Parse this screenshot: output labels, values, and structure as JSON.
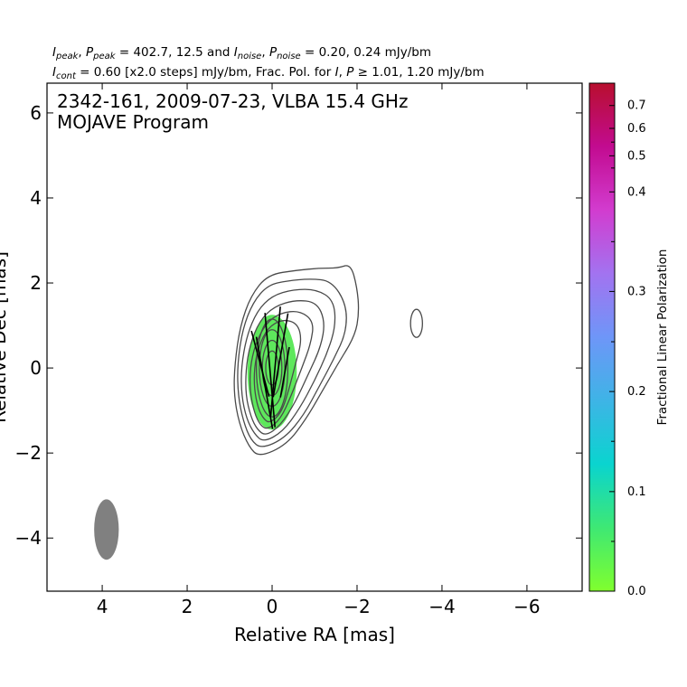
{
  "header": {
    "line1": {
      "i_peak_sym": "I",
      "i_peak_sub": "peak",
      "p_peak_sym": "P",
      "p_peak_sub": "peak",
      "mid": " = 402.7, 12.5 and ",
      "i_noise_sym": "I",
      "i_noise_sub": "noise",
      "p_noise_sym": "P",
      "p_noise_sub": "noise",
      "tail": " = 0.20, 0.24 mJy/bm"
    },
    "line2": {
      "i_cont_sym": "I",
      "i_cont_sub": "cont",
      "mid": " = 0.60 [x2.0 steps] mJy/bm, Frac. Pol. for ",
      "i_sym": "I",
      "p_sym": "P",
      "tail": " ≥ 1.01, 1.20 mJy/bm"
    }
  },
  "plot": {
    "title_line1": "2342-161, 2009-07-23, VLBA 15.4 GHz",
    "title_line2": "MOJAVE Program",
    "xlabel": "Relative RA [mas]",
    "ylabel": "Relative Dec [mas]"
  },
  "colorbar": {
    "label": "Fractional Linear Polarization",
    "ticks": [
      "0.0",
      "0.1",
      "0.2",
      "0.3",
      "0.4",
      "0.5",
      "0.6",
      "0.7"
    ],
    "colors": [
      "#80ff2e",
      "#3ee874",
      "#0ad4cf",
      "#3eb4e6",
      "#6e96f8",
      "#a273f0",
      "#d23ccf",
      "#c20b90",
      "#b80f2e"
    ]
  },
  "chart_data": {
    "type": "contour",
    "title": "2342-161, 2009-07-23, VLBA 15.4 GHz",
    "subtitle": "MOJAVE Program",
    "xlabel": "Relative RA [mas]",
    "ylabel": "Relative Dec [mas]",
    "xlim": [
      5.3,
      -7.3
    ],
    "ylim": [
      -5.25,
      6.7
    ],
    "x_ticks": [
      4,
      2,
      0,
      -2,
      -4,
      -6
    ],
    "y_ticks": [
      -4,
      -2,
      0,
      2,
      4,
      6
    ],
    "x_tick_labels": [
      "4",
      "2",
      "0",
      "−2",
      "−4",
      "−6"
    ],
    "y_tick_labels": [
      "−4",
      "−2",
      "0",
      "2",
      "4",
      "6"
    ],
    "i_peak_mjy_bm": 402.7,
    "p_peak_mjy_bm": 12.5,
    "i_noise_mjy_bm": 0.2,
    "p_noise_mjy_bm": 0.24,
    "i_cont_mjy_bm": 0.6,
    "contour_step_factor": 2.0,
    "fracpol_cut_i_mjy_bm": 1.01,
    "fracpol_cut_p_mjy_bm": 1.2,
    "beam": {
      "center": [
        3.9,
        -3.8
      ],
      "major_mas": 1.42,
      "minor_mas": 0.58,
      "pa_deg": 0
    },
    "contours": [
      {
        "level": 1,
        "points": [
          [
            0.3,
            -2.1
          ],
          [
            -0.35,
            -1.8
          ],
          [
            -0.8,
            -1.2
          ],
          [
            -1.15,
            -0.6
          ],
          [
            -1.55,
            0.1
          ],
          [
            -1.95,
            0.75
          ],
          [
            -2.05,
            1.3
          ],
          [
            -2.0,
            1.9
          ],
          [
            -1.85,
            2.45
          ],
          [
            -1.55,
            2.35
          ],
          [
            -1.1,
            2.35
          ],
          [
            -0.6,
            2.3
          ],
          [
            0.1,
            2.2
          ],
          [
            0.5,
            1.7
          ],
          [
            0.75,
            1.0
          ],
          [
            0.88,
            0.1
          ],
          [
            0.9,
            -0.6
          ],
          [
            0.78,
            -1.3
          ],
          [
            0.55,
            -1.85
          ]
        ]
      },
      {
        "level": 2,
        "points": [
          [
            0.25,
            -1.9
          ],
          [
            -0.3,
            -1.65
          ],
          [
            -0.75,
            -1.1
          ],
          [
            -1.1,
            -0.45
          ],
          [
            -1.45,
            0.2
          ],
          [
            -1.75,
            0.85
          ],
          [
            -1.75,
            1.5
          ],
          [
            -1.4,
            2.05
          ],
          [
            -0.9,
            2.1
          ],
          [
            -0.35,
            2.05
          ],
          [
            0.1,
            1.95
          ],
          [
            0.45,
            1.55
          ],
          [
            0.7,
            0.9
          ],
          [
            0.82,
            0.05
          ],
          [
            0.8,
            -0.65
          ],
          [
            0.68,
            -1.25
          ],
          [
            0.5,
            -1.7
          ]
        ]
      },
      {
        "level": 3,
        "points": [
          [
            0.2,
            -1.75
          ],
          [
            -0.25,
            -1.5
          ],
          [
            -0.65,
            -0.95
          ],
          [
            -1.0,
            -0.3
          ],
          [
            -1.3,
            0.35
          ],
          [
            -1.5,
            1.0
          ],
          [
            -1.45,
            1.6
          ],
          [
            -1.05,
            1.85
          ],
          [
            -0.5,
            1.85
          ],
          [
            0.0,
            1.7
          ],
          [
            0.35,
            1.35
          ],
          [
            0.6,
            0.75
          ],
          [
            0.73,
            0.0
          ],
          [
            0.72,
            -0.65
          ],
          [
            0.6,
            -1.2
          ],
          [
            0.42,
            -1.55
          ]
        ]
      },
      {
        "level": 4,
        "points": [
          [
            0.15,
            -1.6
          ],
          [
            -0.2,
            -1.35
          ],
          [
            -0.55,
            -0.8
          ],
          [
            -0.85,
            -0.15
          ],
          [
            -1.15,
            0.5
          ],
          [
            -1.25,
            1.1
          ],
          [
            -1.05,
            1.55
          ],
          [
            -0.55,
            1.6
          ],
          [
            -0.05,
            1.45
          ],
          [
            0.3,
            1.1
          ],
          [
            0.52,
            0.55
          ],
          [
            0.62,
            -0.05
          ],
          [
            0.62,
            -0.65
          ],
          [
            0.5,
            -1.15
          ],
          [
            0.35,
            -1.45
          ]
        ]
      },
      {
        "level": 5,
        "points": [
          [
            0.1,
            -1.45
          ],
          [
            -0.2,
            -1.2
          ],
          [
            -0.45,
            -0.65
          ],
          [
            -0.7,
            0.0
          ],
          [
            -0.92,
            0.6
          ],
          [
            -0.98,
            1.1
          ],
          [
            -0.65,
            1.35
          ],
          [
            -0.2,
            1.3
          ],
          [
            0.15,
            1.05
          ],
          [
            0.4,
            0.55
          ],
          [
            0.52,
            0.0
          ],
          [
            0.52,
            -0.55
          ],
          [
            0.42,
            -1.05
          ],
          [
            0.28,
            -1.35
          ]
        ]
      },
      {
        "level": 6,
        "points": [
          [
            0.05,
            -1.3
          ],
          [
            -0.22,
            -1.05
          ],
          [
            -0.4,
            -0.5
          ],
          [
            -0.55,
            0.1
          ],
          [
            -0.7,
            0.65
          ],
          [
            -0.6,
            1.05
          ],
          [
            -0.25,
            1.15
          ],
          [
            0.1,
            0.95
          ],
          [
            0.32,
            0.5
          ],
          [
            0.42,
            0.0
          ],
          [
            0.42,
            -0.5
          ],
          [
            0.33,
            -0.95
          ],
          [
            0.2,
            -1.2
          ]
        ]
      },
      {
        "level": 7,
        "ellipse": {
          "center": [
            0.0,
            0.0
          ],
          "rx_mas": 0.37,
          "ry_mas": 1.15
        }
      },
      {
        "level": 8,
        "ellipse": {
          "center": [
            0.0,
            0.0
          ],
          "rx_mas": 0.3,
          "ry_mas": 0.9
        }
      },
      {
        "level": 9,
        "ellipse": {
          "center": [
            0.0,
            0.0
          ],
          "rx_mas": 0.23,
          "ry_mas": 0.65
        }
      },
      {
        "level": 10,
        "ellipse": {
          "center": [
            0.0,
            0.0
          ],
          "rx_mas": 0.15,
          "ry_mas": 0.4
        }
      },
      {
        "level": 1,
        "ellipse": {
          "center": [
            -3.4,
            1.05
          ],
          "rx_mas": 0.14,
          "ry_mas": 0.33
        }
      }
    ],
    "polarization_region": {
      "center": [
        0.0,
        -0.1
      ],
      "rx_mas": 0.58,
      "ry_mas": 1.35,
      "fractional_polarization": 0.06
    },
    "evpa_ticks": [
      {
        "x": 0.28,
        "y": 0.1,
        "half_len_mas": 0.8,
        "angle_deg": 75
      },
      {
        "x": 0.18,
        "y": -0.35,
        "half_len_mas": 1.1,
        "angle_deg": 80
      },
      {
        "x": 0.05,
        "y": -0.05,
        "half_len_mas": 1.35,
        "angle_deg": 85
      },
      {
        "x": -0.08,
        "y": 0.15,
        "half_len_mas": 1.3,
        "angle_deg": 95
      },
      {
        "x": -0.2,
        "y": 0.3,
        "half_len_mas": 1.0,
        "angle_deg": 100
      },
      {
        "x": -0.3,
        "y": -0.1,
        "half_len_mas": 0.6,
        "angle_deg": 100
      }
    ],
    "colorbar": {
      "label": "Fractional Linear Polarization",
      "range": [
        0.0,
        0.75
      ],
      "ticks": [
        0.0,
        0.1,
        0.2,
        0.3,
        0.4,
        0.5,
        0.6,
        0.7
      ],
      "scale": "nonlinear",
      "tick_fractions": [
        0.0,
        0.196,
        0.393,
        0.59,
        0.786,
        0.857,
        0.911,
        0.956
      ]
    }
  }
}
